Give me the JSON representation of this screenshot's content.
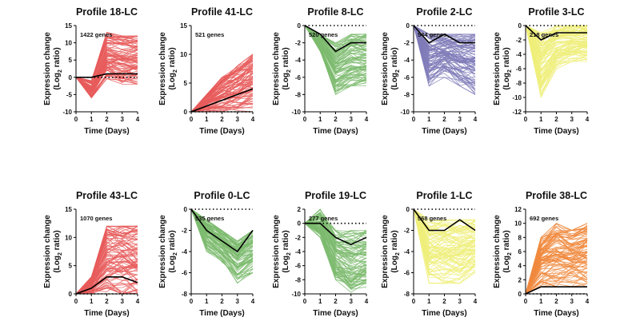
{
  "figure": {
    "xlabel": "Time (Days)",
    "ylabel_line1": "Expression change",
    "ylabel_line2_prefix": "(Log",
    "ylabel_line2_sub": "2",
    "ylabel_line2_suffix": " ratio)"
  },
  "chart_data": [
    {
      "type": "line",
      "title": "Profile 18-LC",
      "genes_label": "1422 genes",
      "color": "#e85c5c",
      "x": [
        0,
        1,
        2,
        3,
        4
      ],
      "ylim": [
        -10,
        15
      ],
      "yticks": [
        -10,
        -5,
        0,
        5,
        10,
        15
      ],
      "xticks": [
        0,
        1,
        2,
        3,
        4
      ],
      "representative": [
        0,
        0,
        1,
        1,
        1
      ],
      "envelope_top": [
        0,
        -1,
        13,
        12,
        12
      ],
      "envelope_bottom": [
        0,
        -6,
        -1,
        -2,
        -2
      ],
      "spread": 0.28
    },
    {
      "type": "line",
      "title": "Profile 41-LC",
      "genes_label": "521 genes",
      "color": "#e85c5c",
      "x": [
        0,
        1,
        2,
        3,
        4
      ],
      "ylim": [
        0,
        15
      ],
      "yticks": [
        0,
        5,
        10,
        15
      ],
      "xticks": [
        0,
        1,
        2,
        3,
        4
      ],
      "representative": [
        0,
        1,
        2,
        3,
        4
      ],
      "envelope_top": [
        0,
        3,
        6,
        8,
        10
      ],
      "envelope_bottom": [
        0,
        0,
        0,
        0,
        0
      ],
      "spread": 0.3
    },
    {
      "type": "line",
      "title": "Profile 8-LC",
      "genes_label": "520 genes",
      "color": "#7dbb6f",
      "x": [
        0,
        1,
        2,
        3,
        4
      ],
      "ylim": [
        -10,
        0
      ],
      "yticks": [
        -10,
        -8,
        -6,
        -4,
        -2,
        0
      ],
      "xticks": [
        0,
        1,
        2,
        3,
        4
      ],
      "representative": [
        0,
        -1,
        -3,
        -2,
        -2
      ],
      "envelope_top": [
        0,
        -1,
        -2,
        -1,
        -1
      ],
      "envelope_bottom": [
        0,
        -3,
        -8,
        -7,
        -7
      ],
      "spread": 0.25
    },
    {
      "type": "line",
      "title": "Profile 2-LC",
      "genes_label": "544 genes",
      "color": "#7f7bb8",
      "x": [
        0,
        1,
        2,
        3,
        4
      ],
      "ylim": [
        -10,
        0
      ],
      "yticks": [
        -10,
        -8,
        -6,
        -4,
        -2,
        0
      ],
      "xticks": [
        0,
        1,
        2,
        3,
        4
      ],
      "representative": [
        0,
        -2,
        -1,
        -2,
        -2
      ],
      "envelope_top": [
        0,
        -1,
        -1,
        -1,
        -1
      ],
      "envelope_bottom": [
        0,
        -7,
        -6,
        -7,
        -8
      ],
      "spread": 0.35
    },
    {
      "type": "line",
      "title": "Profile 3-LC",
      "genes_label": "218 genes",
      "color": "#eeee7a",
      "x": [
        0,
        1,
        2,
        3,
        4
      ],
      "ylim": [
        -12,
        0
      ],
      "yticks": [
        -12,
        -10,
        -8,
        -6,
        -4,
        -2,
        0
      ],
      "xticks": [
        0,
        1,
        2,
        3,
        4
      ],
      "representative": [
        0,
        -2,
        -1,
        -1,
        -1
      ],
      "envelope_top": [
        0,
        -1,
        0,
        0,
        0
      ],
      "envelope_bottom": [
        0,
        -10,
        -6,
        -5,
        -5
      ],
      "spread": 0.3
    },
    {
      "type": "line",
      "title": "Profile 43-LC",
      "genes_label": "1070 genes",
      "color": "#e85c5c",
      "x": [
        0,
        1,
        2,
        3,
        4
      ],
      "ylim": [
        0,
        15
      ],
      "yticks": [
        0,
        5,
        10,
        15
      ],
      "xticks": [
        0,
        1,
        2,
        3,
        4
      ],
      "representative": [
        0,
        1,
        3,
        3,
        2
      ],
      "envelope_top": [
        0,
        3,
        12,
        12,
        12
      ],
      "envelope_bottom": [
        0,
        0,
        0,
        0,
        0
      ],
      "spread": 0.32
    },
    {
      "type": "line",
      "title": "Profile 0-LC",
      "genes_label": "535 genes",
      "color": "#7dbb6f",
      "x": [
        0,
        1,
        2,
        3,
        4
      ],
      "ylim": [
        -8,
        0
      ],
      "yticks": [
        -8,
        -6,
        -4,
        -2,
        0
      ],
      "xticks": [
        0,
        1,
        2,
        3,
        4
      ],
      "representative": [
        0,
        -2,
        -3,
        -4,
        -2
      ],
      "envelope_top": [
        0,
        -1,
        -2,
        -3,
        -2
      ],
      "envelope_bottom": [
        0,
        -4,
        -5,
        -7,
        -6
      ],
      "spread": 0.28
    },
    {
      "type": "line",
      "title": "Profile 19-LC",
      "genes_label": "277 genes",
      "color": "#7dbb6f",
      "x": [
        0,
        1,
        2,
        3,
        4
      ],
      "ylim": [
        -10,
        2
      ],
      "yticks": [
        -10,
        -8,
        -6,
        -4,
        -2,
        0,
        2
      ],
      "xticks": [
        0,
        1,
        2,
        3,
        4
      ],
      "representative": [
        0,
        0,
        -2,
        -3,
        -2
      ],
      "envelope_top": [
        0,
        2,
        -1,
        -1,
        -1
      ],
      "envelope_bottom": [
        0,
        -2,
        -8,
        -10,
        -9
      ],
      "spread": 0.3
    },
    {
      "type": "line",
      "title": "Profile 1-LC",
      "genes_label": "568 genes",
      "color": "#eeee7a",
      "x": [
        0,
        1,
        2,
        3,
        4
      ],
      "ylim": [
        -8,
        0
      ],
      "yticks": [
        -8,
        -6,
        -4,
        -2,
        0
      ],
      "xticks": [
        0,
        1,
        2,
        3,
        4
      ],
      "representative": [
        0,
        -2,
        -2,
        -1,
        -2
      ],
      "envelope_top": [
        0,
        -1,
        -1,
        -1,
        -1
      ],
      "envelope_bottom": [
        0,
        -7,
        -7,
        -7,
        -6
      ],
      "spread": 0.3
    },
    {
      "type": "line",
      "title": "Profile 38-LC",
      "genes_label": "692 genes",
      "color": "#f08a3e",
      "x": [
        0,
        1,
        2,
        3,
        4
      ],
      "ylim": [
        0,
        12
      ],
      "yticks": [
        0,
        2,
        4,
        6,
        8,
        10,
        12
      ],
      "xticks": [
        0,
        1,
        2,
        3,
        4
      ],
      "representative": [
        0,
        1,
        1,
        1,
        1
      ],
      "envelope_top": [
        0,
        8,
        10,
        9,
        10
      ],
      "envelope_bottom": [
        0,
        1,
        1,
        1,
        1
      ],
      "spread": 0.3
    }
  ]
}
